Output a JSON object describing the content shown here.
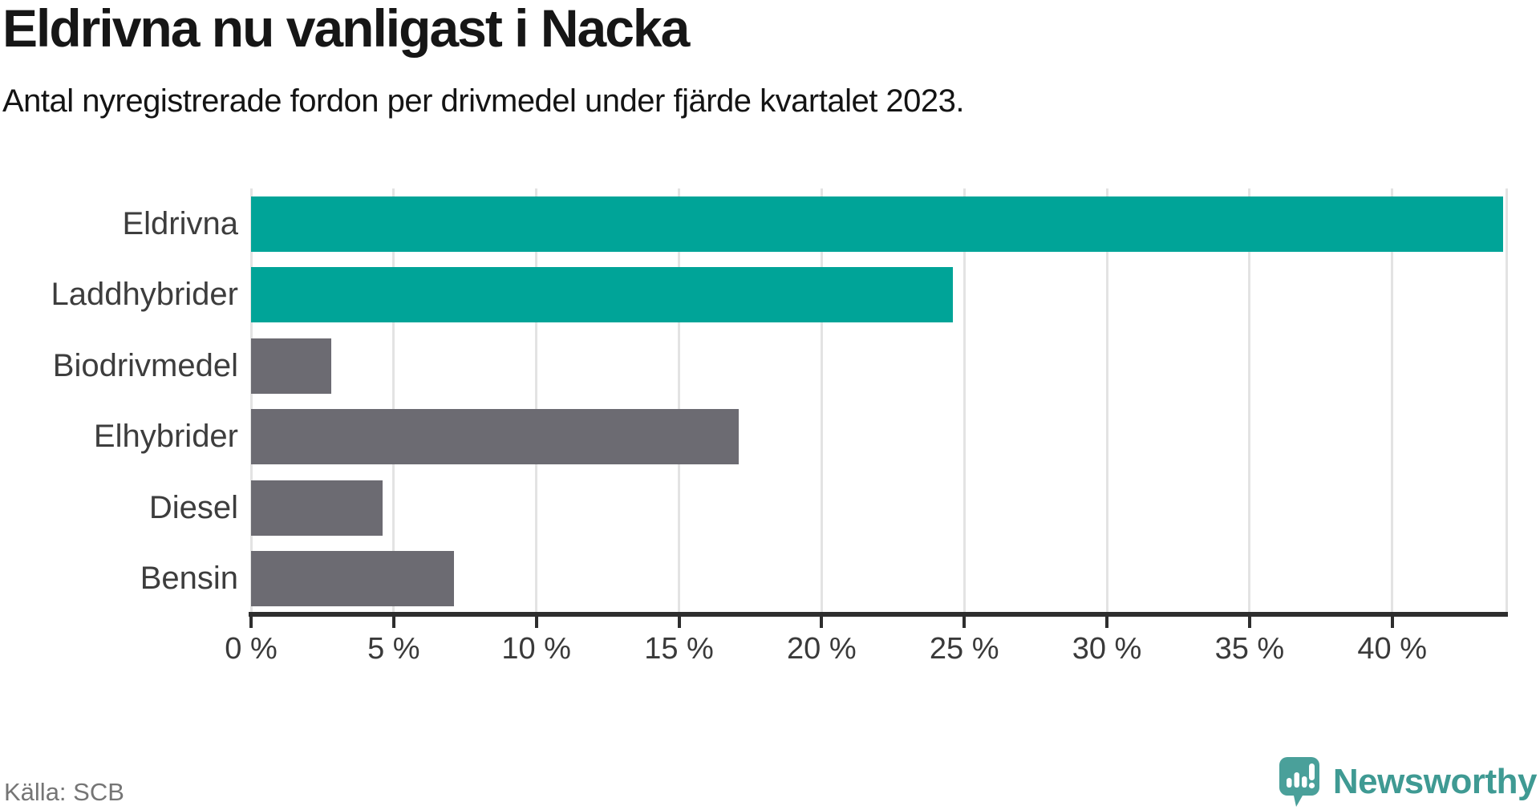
{
  "title": "Eldrivna nu vanligast i Nacka",
  "subtitle": "Antal nyregistrerade fordon per drivmedel under fjärde kvartalet 2023.",
  "source": "Källa: SCB",
  "brand": {
    "name": "Newsworthy",
    "icon": "speech-bubble-bar-chart-exclamation-icon",
    "color": "#3f9a93",
    "icon_color": "#4aa09a"
  },
  "colors": {
    "highlight": "#00a498",
    "default_bar": "#6c6b72",
    "grid": "#e3e3e3",
    "axis": "#2e2e2e",
    "tick_label": "#3a3a3a",
    "category_label": "#3d3d3d",
    "title_text": "#161616",
    "source_text": "#757575"
  },
  "chart_data": {
    "type": "bar",
    "orientation": "horizontal",
    "title": "Eldrivna nu vanligast i Nacka",
    "subtitle": "Antal nyregistrerade fordon per drivmedel under fjärde kvartalet 2023.",
    "categories": [
      "Eldrivna",
      "Laddhybrider",
      "Biodrivmedel",
      "Elhybrider",
      "Diesel",
      "Bensin"
    ],
    "values": [
      43.9,
      24.6,
      2.8,
      17.1,
      4.6,
      7.1
    ],
    "unit": "%",
    "bar_colors": [
      "#00a498",
      "#00a498",
      "#6c6b72",
      "#6c6b72",
      "#6c6b72",
      "#6c6b72"
    ],
    "xlim": [
      0,
      44
    ],
    "xticks": [
      {
        "value": 0,
        "label": "0 %"
      },
      {
        "value": 5,
        "label": "5 %"
      },
      {
        "value": 10,
        "label": "10 %"
      },
      {
        "value": 15,
        "label": "15 %"
      },
      {
        "value": 20,
        "label": "20 %"
      },
      {
        "value": 25,
        "label": "25 %"
      },
      {
        "value": 30,
        "label": "30 %"
      },
      {
        "value": 35,
        "label": "35 %"
      },
      {
        "value": 40,
        "label": "40 %"
      },
      {
        "value": 44,
        "label": ""
      }
    ],
    "grid": true,
    "legend": "none",
    "source": "Källa: SCB"
  }
}
